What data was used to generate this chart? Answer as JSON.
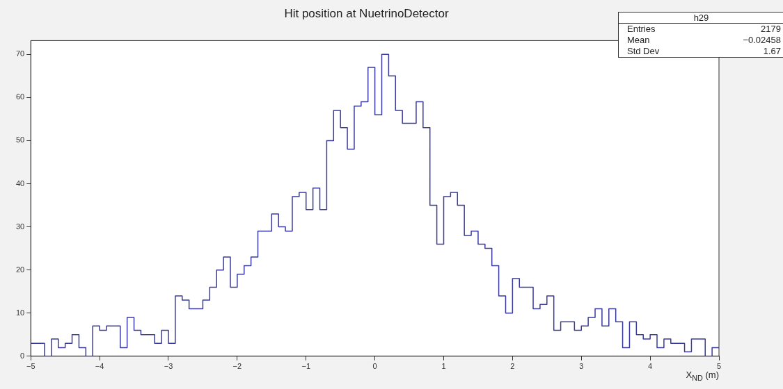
{
  "chart_data": {
    "type": "histogram",
    "title": "Hit position at NuetrinoDetector",
    "xlabel": "X$_{ND}$ (m)",
    "bins": [
      -5,
      -4.9,
      -4.8,
      -4.7,
      -4.6,
      -4.5,
      -4.4,
      -4.3,
      -4.2,
      -4.1,
      -4,
      -3.9,
      -3.8,
      -3.7,
      -3.6,
      -3.5,
      -3.4,
      -3.3,
      -3.2,
      -3.1,
      -3,
      -2.9,
      -2.8,
      -2.7,
      -2.6,
      -2.5,
      -2.4,
      -2.3,
      -2.2,
      -2.1,
      -2,
      -1.9,
      -1.8,
      -1.7,
      -1.6,
      -1.5,
      -1.4,
      -1.3,
      -1.2,
      -1.1,
      -1,
      -0.9,
      -0.8,
      -0.7,
      -0.6,
      -0.5,
      -0.4,
      -0.3,
      -0.2,
      -0.1,
      0,
      0.1,
      0.2,
      0.3,
      0.4,
      0.5,
      0.6,
      0.7,
      0.8,
      0.9,
      1,
      1.1,
      1.2,
      1.3,
      1.4,
      1.5,
      1.6,
      1.7,
      1.8,
      1.9,
      2,
      2.1,
      2.2,
      2.3,
      2.4,
      2.5,
      2.6,
      2.7,
      2.8,
      2.9,
      3,
      3.1,
      3.2,
      3.3,
      3.4,
      3.5,
      3.6,
      3.7,
      3.8,
      3.9,
      4,
      4.1,
      4.2,
      4.3,
      4.4,
      4.5,
      4.6,
      4.7,
      4.8,
      4.9,
      5
    ],
    "values": [
      3,
      3,
      0,
      4,
      2,
      3,
      5,
      2,
      0,
      7,
      6,
      7,
      7,
      2,
      9,
      6,
      5,
      5,
      3,
      6,
      3,
      14,
      13,
      11,
      11,
      13,
      16,
      20,
      23,
      16,
      19,
      21,
      23,
      29,
      29,
      33,
      30,
      29,
      37,
      38,
      34,
      39,
      34,
      50,
      57,
      53,
      48,
      58,
      59,
      67,
      56,
      70,
      65,
      57,
      54,
      54,
      59,
      53,
      35,
      26,
      37,
      38,
      35,
      28,
      29,
      26,
      25,
      21,
      14,
      10,
      18,
      16,
      16,
      11,
      12,
      14,
      6,
      8,
      8,
      6,
      7,
      9,
      11,
      7,
      11,
      8,
      2,
      8,
      5,
      4,
      5,
      2,
      4,
      3,
      3,
      1,
      4,
      4,
      0,
      2
    ],
    "color": "#3b3b9c",
    "xlim": [
      -5,
      5
    ],
    "xticks": [
      -5,
      -4,
      -3,
      -2,
      -1,
      0,
      1,
      2,
      3,
      4,
      5
    ],
    "ylim": [
      0,
      73.2
    ],
    "yticks": [
      0,
      10,
      20,
      30,
      40,
      50,
      60,
      70
    ],
    "annotations": [
      "h29",
      "Entries",
      "2179",
      "Mean",
      "−0.02458",
      "Std Dev",
      "1.67"
    ],
    "legend": false
  }
}
